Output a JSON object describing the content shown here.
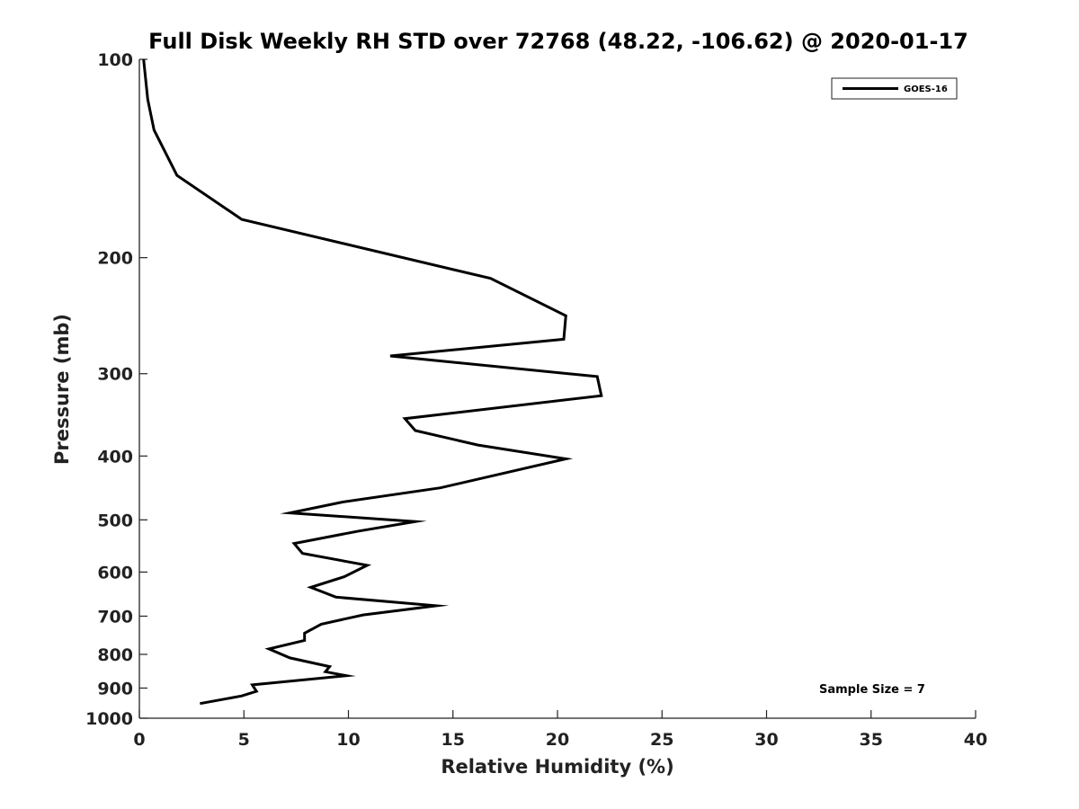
{
  "chart_data": {
    "type": "line",
    "title": "Full Disk Weekly RH STD over 72768 (48.22, -106.62) @ 2020-01-17",
    "xlabel": "Relative Humidity (%)",
    "ylabel": "Pressure (mb)",
    "xlim": [
      0,
      40
    ],
    "ylim": [
      100,
      1000
    ],
    "y_scale": "log",
    "y_inverted": true,
    "x_ticks": [
      0,
      5,
      10,
      15,
      20,
      25,
      30,
      35,
      40
    ],
    "x_tick_labels": [
      "0",
      "5",
      "10",
      "15",
      "20",
      "25",
      "30",
      "35",
      "40"
    ],
    "y_ticks": [
      100,
      200,
      300,
      400,
      500,
      600,
      700,
      800,
      900,
      1000
    ],
    "y_tick_labels": [
      "100",
      "200",
      "300",
      "400",
      "500",
      "600",
      "700",
      "800",
      "900",
      "1000"
    ],
    "grid": false,
    "legend": {
      "location": "top-right",
      "entries": [
        "GOES-16"
      ]
    },
    "annotation": "Sample Size = 7",
    "series": [
      {
        "name": "GOES-16",
        "color": "#000000",
        "x": [
          0.2,
          0.4,
          0.7,
          1.8,
          4.9,
          16.8,
          20.4,
          20.3,
          12.0,
          21.9,
          22.1,
          12.7,
          13.2,
          16.2,
          20.4,
          14.4,
          9.7,
          7.2,
          13.2,
          10.5,
          7.4,
          7.8,
          10.9,
          9.8,
          8.2,
          9.4,
          14.2,
          10.7,
          8.7,
          7.9,
          7.9,
          6.2,
          7.2,
          9.1,
          8.9,
          9.9,
          5.4,
          5.6,
          4.9,
          2.9
        ],
        "y": [
          100,
          115,
          128,
          150,
          175,
          215,
          245,
          266,
          282,
          303,
          324,
          351,
          366,
          385,
          404,
          447,
          470,
          488,
          503,
          520,
          543,
          562,
          586,
          610,
          633,
          655,
          675,
          697,
          720,
          743,
          762,
          785,
          810,
          835,
          850,
          862,
          890,
          910,
          925,
          950
        ]
      }
    ]
  }
}
